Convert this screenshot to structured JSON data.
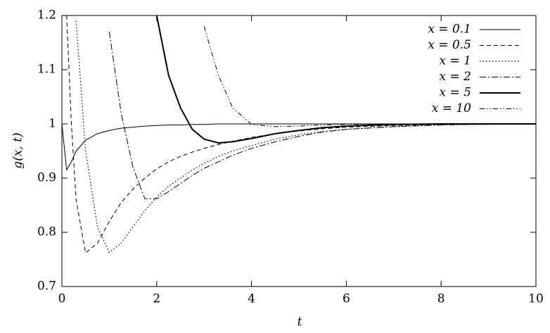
{
  "chart_data": {
    "type": "line",
    "x_label": "t",
    "y_label": "g(x, t)",
    "x": [
      0,
      0.1,
      0.2,
      0.3,
      0.5,
      0.75,
      1,
      1.25,
      1.5,
      1.75,
      2,
      2.25,
      2.5,
      2.75,
      3,
      3.3,
      3.6,
      4,
      4.5,
      5,
      5.5,
      6,
      7,
      8,
      9,
      10
    ],
    "series": [
      {
        "name": "x = 0.1",
        "color": "#000000",
        "dash": "none",
        "width": 1,
        "values": [
          1.0,
          0.915,
          0.93,
          0.95,
          0.97,
          0.982,
          0.988,
          0.992,
          0.994,
          0.996,
          0.997,
          0.998,
          0.998,
          0.999,
          0.999,
          1,
          1,
          1,
          1,
          1,
          1,
          1,
          1,
          1,
          1,
          1
        ]
      },
      {
        "name": "x = 0.5",
        "color": "#000000",
        "dash": "6 4",
        "width": 1,
        "values": [
          null,
          1.2,
          1.0,
          0.86,
          0.762,
          0.78,
          0.82,
          0.855,
          0.88,
          0.9,
          0.917,
          0.93,
          0.94,
          0.948,
          0.955,
          0.962,
          0.968,
          0.975,
          0.982,
          0.987,
          0.991,
          0.994,
          0.997,
          0.999,
          1,
          1
        ]
      },
      {
        "name": "x = 1",
        "color": "#000000",
        "dash": "1.5 3",
        "width": 1.2,
        "values": [
          null,
          null,
          null,
          1.19,
          0.95,
          0.81,
          0.763,
          0.78,
          0.81,
          0.84,
          0.865,
          0.885,
          0.9,
          0.915,
          0.927,
          0.94,
          0.95,
          0.96,
          0.972,
          0.98,
          0.986,
          0.99,
          0.995,
          0.998,
          0.999,
          1
        ]
      },
      {
        "name": "x = 2",
        "color": "#000000",
        "dash": "9 3 2 3",
        "width": 1,
        "values": [
          null,
          null,
          null,
          null,
          null,
          null,
          1.17,
          1.02,
          0.92,
          0.862,
          0.862,
          0.875,
          0.89,
          0.905,
          0.918,
          0.93,
          0.942,
          0.955,
          0.967,
          0.977,
          0.985,
          0.99,
          0.995,
          0.998,
          1,
          1
        ]
      },
      {
        "name": "x = 5",
        "color": "#000000",
        "dash": "none",
        "width": 2,
        "values": [
          null,
          null,
          null,
          null,
          null,
          null,
          null,
          null,
          null,
          null,
          1.2,
          1.09,
          1.03,
          0.99,
          0.972,
          0.965,
          0.967,
          0.973,
          0.982,
          0.988,
          0.993,
          0.996,
          0.999,
          1,
          1,
          1
        ]
      },
      {
        "name": "x = 10",
        "color": "#000000",
        "dash": "7 3 1.5 3 1.5 3",
        "width": 1,
        "values": [
          null,
          null,
          null,
          null,
          null,
          null,
          null,
          null,
          null,
          null,
          null,
          null,
          null,
          null,
          1.18,
          1.09,
          1.03,
          0.999,
          0.995,
          0.996,
          0.998,
          0.999,
          1,
          1,
          1,
          1
        ]
      }
    ],
    "xlim": [
      0,
      10
    ],
    "ylim": [
      0.7,
      1.2
    ],
    "xticks": [
      0,
      2,
      4,
      6,
      8,
      10
    ],
    "yticks": [
      0.7,
      0.8,
      0.9,
      1,
      1.1,
      1.2
    ],
    "grid": false,
    "legend": "top-right"
  }
}
